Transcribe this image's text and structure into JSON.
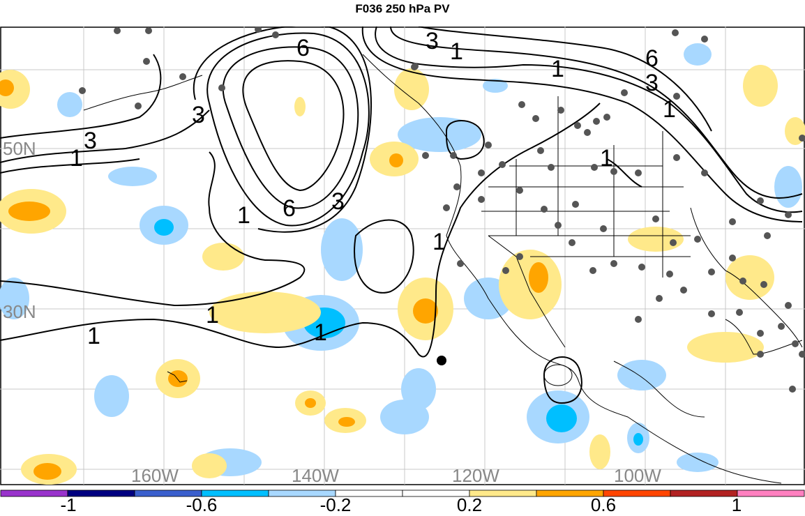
{
  "title": "F036 250 hPa PV",
  "map": {
    "lat_labels": [
      {
        "id": "lat-50n",
        "text": "50N"
      },
      {
        "id": "lat-30n",
        "text": "30N"
      }
    ],
    "lon_labels": [
      {
        "id": "lon-160w",
        "text": "160W"
      },
      {
        "id": "lon-140w",
        "text": "140W"
      },
      {
        "id": "lon-120w",
        "text": "120W"
      },
      {
        "id": "lon-100w",
        "text": "100W"
      }
    ],
    "contour_labels": [
      "1",
      "3",
      "6"
    ],
    "label_color": "#888888"
  },
  "colorbar": {
    "colors": [
      "#9933cc",
      "#000080",
      "#3a5fcd",
      "#00bfff",
      "#a8d8ff",
      "#ffffff",
      "#ffffff",
      "#ffe98a",
      "#ffa500",
      "#ff4500",
      "#b22222",
      "#ff80c0"
    ],
    "tick_labels": [
      "-1",
      "-0.6",
      "-0.2",
      "0.2",
      "0.6",
      "1"
    ]
  },
  "colors": {
    "positive_light": "#ffe98a",
    "positive_mid": "#ffa500",
    "negative_light": "#a8d8ff",
    "negative_mid": "#00bfff",
    "station": "#555555"
  }
}
